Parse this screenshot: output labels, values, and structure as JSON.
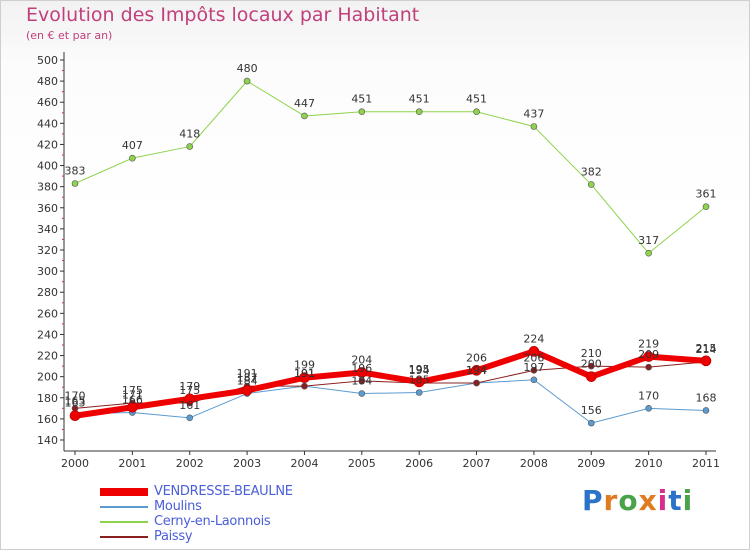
{
  "chart_data": {
    "type": "line",
    "title": "Evolution des Impôts locaux par Habitant",
    "subtitle": "(en € et par an)",
    "xlabel": "",
    "ylabel": "",
    "x": [
      "2000",
      "2001",
      "2002",
      "2003",
      "2004",
      "2005",
      "2006",
      "2007",
      "2008",
      "2009",
      "2010",
      "2011"
    ],
    "ylim": [
      140,
      500
    ],
    "yticks": [
      140,
      160,
      180,
      200,
      220,
      240,
      260,
      280,
      300,
      320,
      340,
      360,
      380,
      400,
      420,
      440,
      460,
      480,
      500
    ],
    "grid": false,
    "legend_position": "bottom-left",
    "series": [
      {
        "name": "VENDRESSE-BEAULNE",
        "color": "#ee0000",
        "width": 6,
        "values": [
          163,
          171,
          179,
          187,
          199,
          204,
          195,
          206,
          224,
          200,
          219,
          215
        ]
      },
      {
        "name": "Moulins",
        "color": "#5b9bd0",
        "width": 1,
        "values": [
          165,
          166,
          161,
          184,
          191,
          184,
          185,
          194,
          197,
          156,
          170,
          168
        ]
      },
      {
        "name": "Cerny-en-Laonnois",
        "color": "#8fd34c",
        "width": 1,
        "values": [
          383,
          407,
          418,
          480,
          447,
          451,
          451,
          451,
          437,
          382,
          317,
          361
        ]
      },
      {
        "name": "Paissy",
        "color": "#8b2020",
        "width": 1,
        "values": [
          170,
          175,
          175,
          191,
          191,
          196,
          194,
          194,
          206,
          210,
          209,
          214
        ]
      }
    ],
    "data_labels": [
      {
        "series": 0,
        "values": [
          "163",
          "171",
          "179",
          "187",
          "199",
          "204",
          "195",
          "206",
          "224",
          "200",
          "219",
          "215"
        ]
      },
      {
        "series": 1,
        "values": [
          "165",
          "166",
          "161",
          "184",
          "191",
          "184",
          "185",
          "194",
          "197",
          "156",
          "170",
          "168"
        ]
      },
      {
        "series": 2,
        "values": [
          "383",
          "407",
          "418",
          "480",
          "447",
          "451",
          "451",
          "451",
          "437",
          "382",
          "317",
          "361"
        ]
      },
      {
        "series": 3,
        "values": [
          "170",
          "175",
          "175",
          "191",
          "191",
          "196",
          "194",
          "194",
          "206",
          "210",
          "209",
          "214"
        ]
      }
    ]
  },
  "legend": {
    "items": [
      {
        "label": "VENDRESSE-BEAULNE",
        "color": "#ee0000"
      },
      {
        "label": "Moulins",
        "color": "#5b9bd0"
      },
      {
        "label": "Cerny-en-Laonnois",
        "color": "#8fd34c"
      },
      {
        "label": "Paissy",
        "color": "#8b2020"
      }
    ]
  },
  "logo": {
    "text": "Proxiti"
  }
}
